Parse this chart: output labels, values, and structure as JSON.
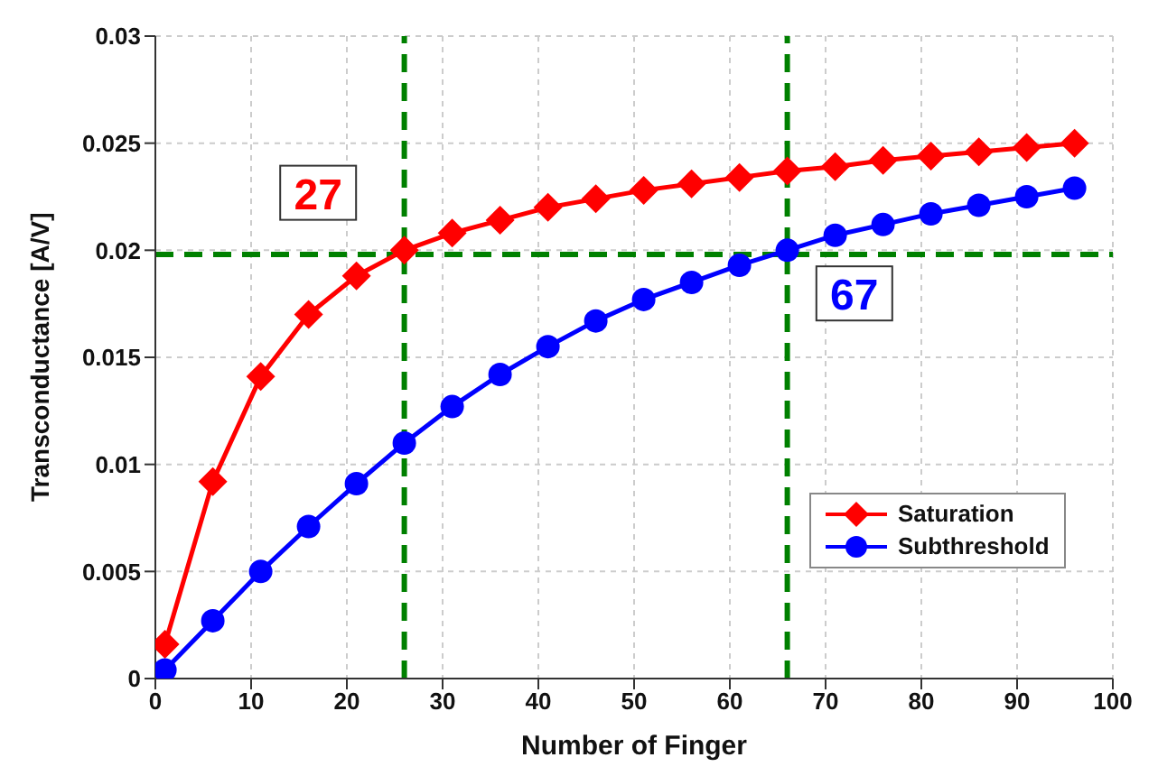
{
  "chart_data": {
    "type": "line",
    "xlabel": "Number of Finger",
    "ylabel": "Transconductance [A/V]",
    "x": [
      1,
      6,
      11,
      16,
      21,
      26,
      31,
      36,
      41,
      46,
      51,
      56,
      61,
      66,
      71,
      76,
      81,
      86,
      91,
      96
    ],
    "series": [
      {
        "name": "Saturation",
        "color": "#ff0000",
        "marker": "diamond",
        "values": [
          0.0016,
          0.0092,
          0.0141,
          0.017,
          0.0188,
          0.02,
          0.0208,
          0.0214,
          0.022,
          0.0224,
          0.0228,
          0.0231,
          0.0234,
          0.0237,
          0.0239,
          0.0242,
          0.0244,
          0.0246,
          0.0248,
          0.025
        ]
      },
      {
        "name": "Subthreshold",
        "color": "#0000ff",
        "marker": "circle",
        "values": [
          0.0004,
          0.0027,
          0.005,
          0.0071,
          0.0091,
          0.011,
          0.0127,
          0.0142,
          0.0155,
          0.0167,
          0.0177,
          0.0185,
          0.0193,
          0.02,
          0.0207,
          0.0212,
          0.0217,
          0.0221,
          0.0225,
          0.0229
        ]
      }
    ],
    "xlim": [
      0,
      100
    ],
    "xticks": [
      0,
      10,
      20,
      30,
      40,
      50,
      60,
      70,
      80,
      90,
      100
    ],
    "ylim": [
      0,
      0.03
    ],
    "yticks": [
      0,
      0.005,
      0.01,
      0.015,
      0.02,
      0.025,
      0.03
    ],
    "ref_lines": [
      {
        "axis": "y",
        "value": 0.0198,
        "color": "#008000",
        "line_style": "dashed"
      },
      {
        "axis": "x",
        "value": 26,
        "color": "#008000",
        "line_style": "dashed"
      },
      {
        "axis": "x",
        "value": 66,
        "color": "#008000",
        "line_style": "dashed"
      }
    ],
    "annotations": [
      {
        "text": "27",
        "x": 17,
        "y": 0.0226
      },
      {
        "text": "67",
        "x": 73,
        "y": 0.0179
      }
    ],
    "grid": true,
    "legend": "bottom right",
    "line_style": "solid"
  }
}
